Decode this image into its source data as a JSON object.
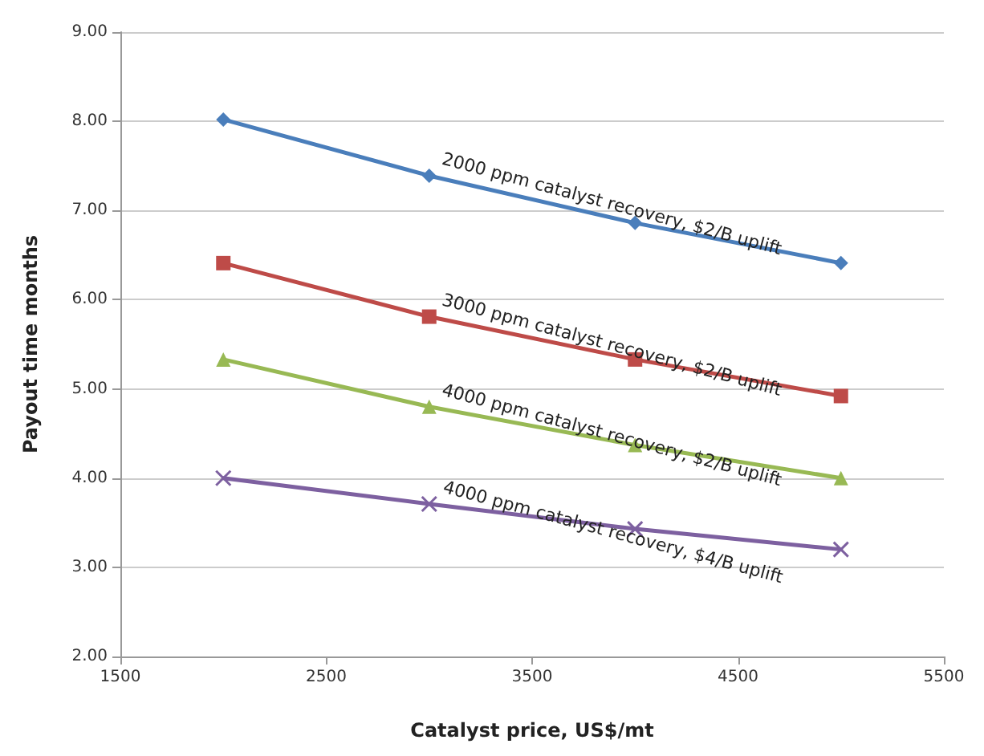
{
  "chart_data": {
    "type": "line",
    "xlabel": "Catalyst price, US$/mt",
    "ylabel": "Payout time months",
    "x": [
      2000,
      3000,
      4000,
      5000
    ],
    "series": [
      {
        "name": "2000 ppm catalyst recovery, $2/B uplift",
        "color": "#4a7ebb",
        "marker": "diamond",
        "values": [
          8.02,
          7.39,
          6.86,
          6.41
        ]
      },
      {
        "name": "3000 ppm catalyst recovery, $2/B uplift",
        "color": "#be4b48",
        "marker": "square",
        "values": [
          6.41,
          5.81,
          5.33,
          4.92
        ]
      },
      {
        "name": "4000 ppm catalyst recovery, $2/B uplift",
        "color": "#98b954",
        "marker": "triangle",
        "values": [
          5.33,
          4.8,
          4.37,
          4.0
        ]
      },
      {
        "name": "4000 ppm catalyst recovery, $4/B uplift",
        "color": "#7d60a0",
        "marker": "cross",
        "values": [
          4.0,
          3.71,
          3.43,
          3.2
        ]
      }
    ],
    "xlim": [
      1500,
      5500
    ],
    "xticks": [
      1500,
      2500,
      3500,
      4500,
      5500
    ],
    "ylim": [
      2,
      9
    ],
    "yticks": [
      {
        "value": 2,
        "label": "2.00"
      },
      {
        "value": 3,
        "label": "3.00"
      },
      {
        "value": 4,
        "label": "4.00"
      },
      {
        "value": 5,
        "label": "5.00"
      },
      {
        "value": 6,
        "label": "6.00"
      },
      {
        "value": 7,
        "label": "7.00"
      },
      {
        "value": 8,
        "label": "8.00"
      },
      {
        "value": 9,
        "label": "9.00"
      }
    ],
    "grid": "y"
  }
}
